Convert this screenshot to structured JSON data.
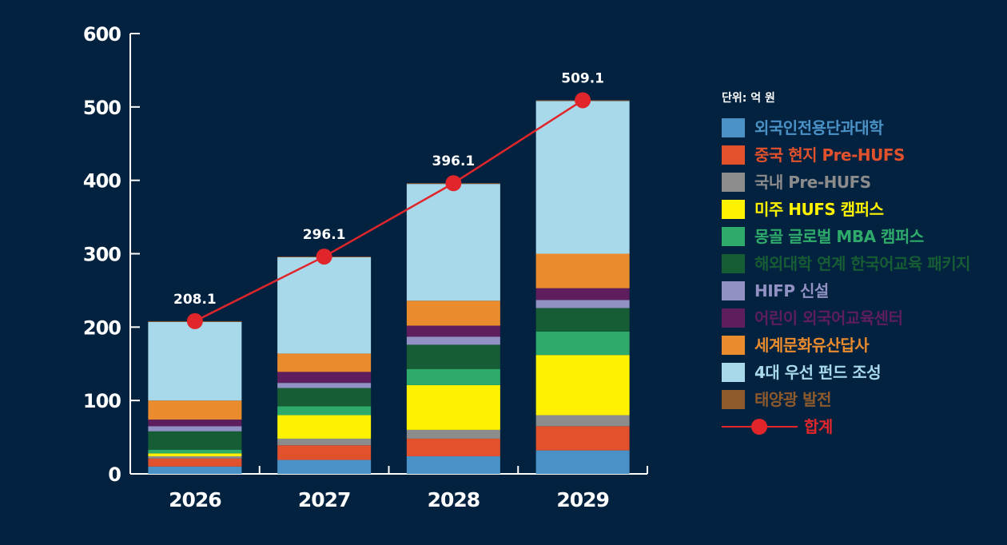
{
  "chart_data": {
    "type": "bar",
    "stacked": true,
    "unit_label": "단위: 억 원",
    "categories": [
      "2026",
      "2027",
      "2028",
      "2029"
    ],
    "ylim": [
      0,
      600
    ],
    "yticks": [
      0,
      100,
      200,
      300,
      400,
      500,
      600
    ],
    "series": [
      {
        "name": "외국인전용단과대학",
        "color": "#4a92c6",
        "values": [
          10,
          19,
          24,
          32
        ]
      },
      {
        "name": "중국 현지 Pre-HUFS",
        "color": "#e1512c",
        "values": [
          11,
          20,
          24,
          33
        ]
      },
      {
        "name": "국내 Pre-HUFS",
        "color": "#8c8c8c",
        "values": [
          3,
          9,
          12,
          15
        ]
      },
      {
        "name": "미주 HUFS 캠퍼스",
        "color": "#fff200",
        "values": [
          4,
          32,
          61,
          82
        ]
      },
      {
        "name": "몽골 글로벌 MBA 캠퍼스",
        "color": "#2eab6b",
        "values": [
          5,
          12,
          22,
          32
        ]
      },
      {
        "name": "해외대학 연계 한국어교육 패키지",
        "color": "#165c34",
        "values": [
          25,
          25,
          33,
          32
        ]
      },
      {
        "name": "HIFP 신설",
        "color": "#9191c3",
        "values": [
          7,
          7,
          11,
          11
        ]
      },
      {
        "name": "어린이 외국어교육센터",
        "color": "#5e1d5c",
        "values": [
          9,
          15,
          15,
          16
        ]
      },
      {
        "name": "세계문화유산답사",
        "color": "#ea8b2e",
        "values": [
          26,
          25,
          34,
          47
        ]
      },
      {
        "name": "4대 우선 펀드 조성",
        "color": "#a7d9ea",
        "values": [
          107.1,
          131.1,
          159.1,
          208.1
        ]
      },
      {
        "name": "태양광 발전",
        "color": "#8e5a2c",
        "values": [
          1,
          1,
          1,
          1
        ]
      },
      {
        "name": "합계",
        "color": "#e0262b",
        "type": "line",
        "values": [
          208.1,
          296.1,
          396.1,
          509.1
        ]
      }
    ]
  }
}
